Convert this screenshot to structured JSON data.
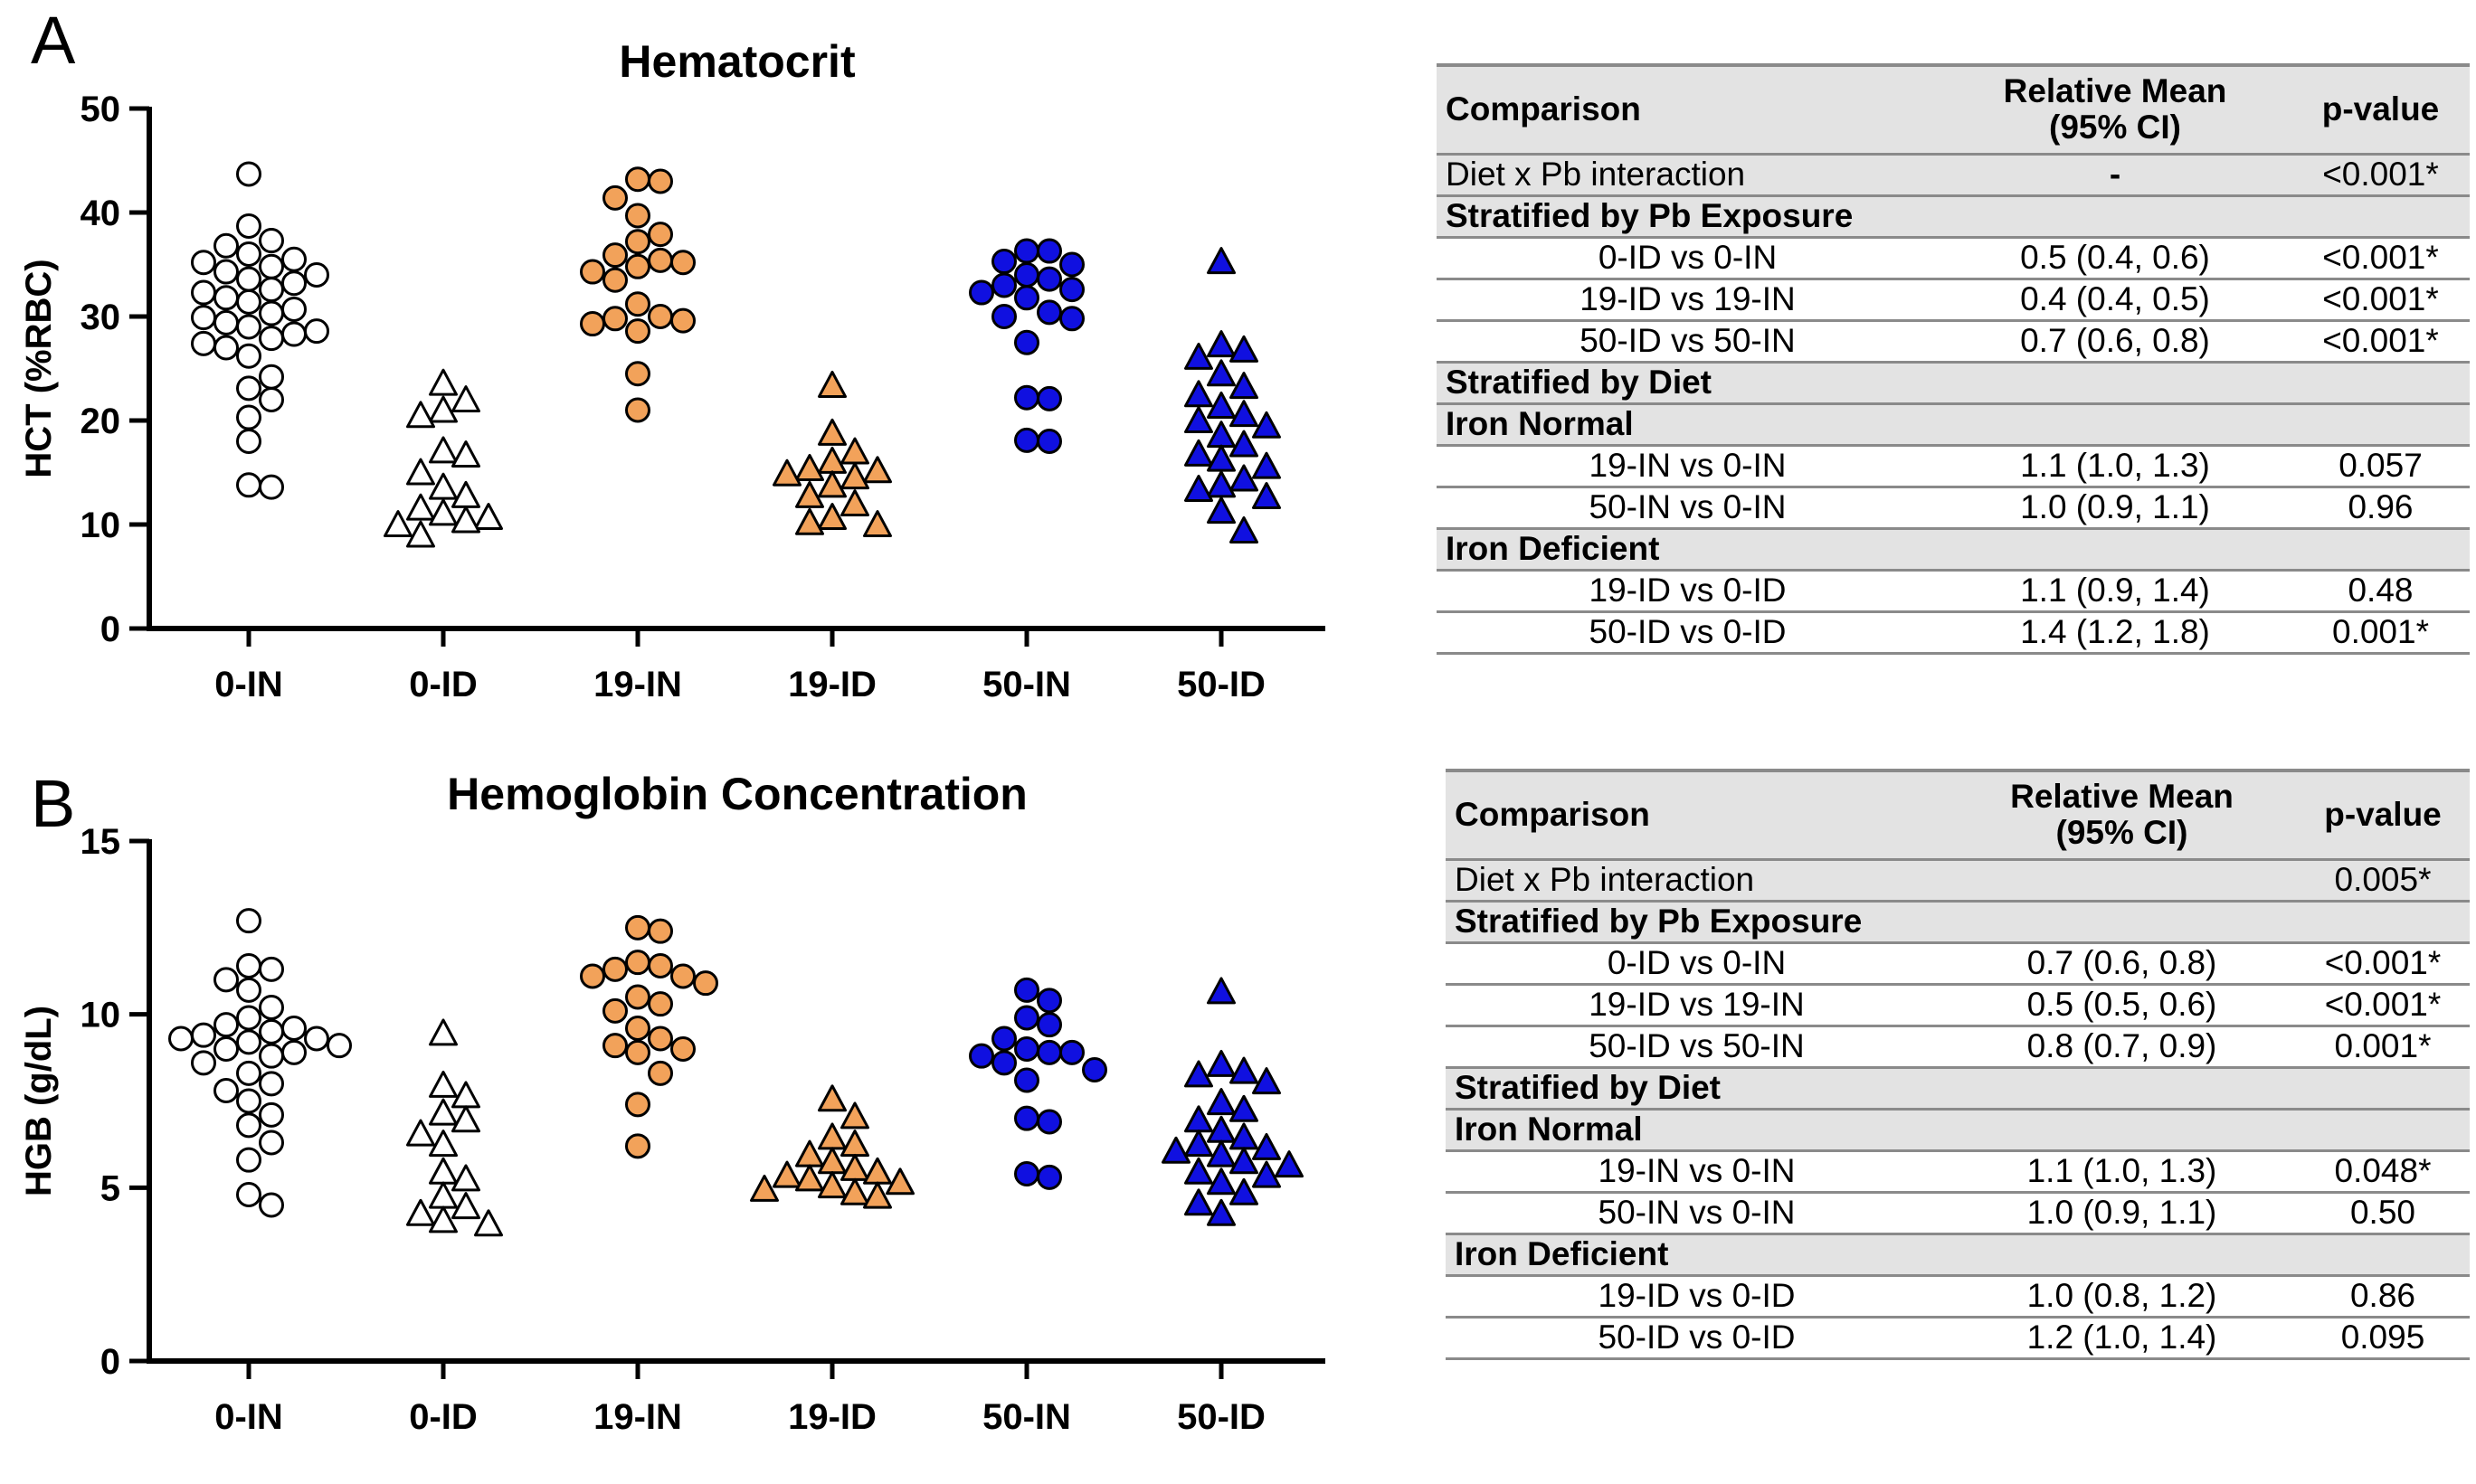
{
  "panels": {
    "a_letter": "A",
    "b_letter": "B"
  },
  "colors": {
    "orange": "#f2a25a",
    "blue": "#1010e0",
    "white": "#ffffff",
    "header_grey": "#e3e3e3",
    "rule_grey": "#8a8a8a"
  },
  "chart_data": [
    {
      "type": "scatter",
      "title": "Hematocrit",
      "ylabel": "HCT (%RBC)",
      "xlabel": "",
      "ylim": [
        0,
        50
      ],
      "yticks": [
        0,
        10,
        20,
        30,
        40,
        50
      ],
      "categories": [
        "0-IN",
        "0-ID",
        "19-IN",
        "19-ID",
        "50-IN",
        "50-ID"
      ],
      "series": [
        {
          "name": "0-IN",
          "marker": "circle",
          "fill": "#ffffff",
          "values": [
            43.7,
            38.7,
            37.3,
            36.8,
            36.0,
            35.5,
            35.2,
            34.8,
            34.3,
            34.0,
            33.6,
            33.2,
            32.6,
            32.3,
            31.8,
            31.4,
            30.7,
            30.3,
            29.9,
            29.4,
            29.0,
            28.6,
            28.3,
            27.9,
            27.4,
            27.0,
            26.2,
            24.2,
            23.1,
            22.0,
            20.3,
            18.0,
            13.8,
            13.6
          ]
        },
        {
          "name": "0-ID",
          "marker": "triangle",
          "fill": "#ffffff",
          "values": [
            23.4,
            21.8,
            20.8,
            20.3,
            16.9,
            16.5,
            14.8,
            13.4,
            12.6,
            11.4,
            10.9,
            10.5,
            10.2,
            9.8,
            8.8
          ]
        },
        {
          "name": "19-IN",
          "marker": "circle",
          "fill": "#f2a25a",
          "values": [
            43.2,
            43.0,
            41.4,
            39.7,
            37.9,
            37.2,
            35.9,
            35.4,
            35.2,
            34.8,
            34.3,
            33.5,
            31.2,
            30.0,
            29.8,
            29.6,
            29.3,
            28.6,
            24.5,
            21.0
          ]
        },
        {
          "name": "19-ID",
          "marker": "triangle",
          "fill": "#f2a25a",
          "values": [
            23.2,
            18.6,
            16.8,
            15.9,
            15.2,
            15.0,
            14.7,
            14.4,
            13.6,
            12.6,
            11.8,
            10.5,
            10.0,
            9.8
          ]
        },
        {
          "name": "50-IN",
          "marker": "circle",
          "fill": "#1010e0",
          "values": [
            36.3,
            36.3,
            35.3,
            35.0,
            34.0,
            33.6,
            33.0,
            32.6,
            32.3,
            31.8,
            30.4,
            30.0,
            29.8,
            27.5,
            22.2,
            22.1,
            18.1,
            18.0
          ]
        },
        {
          "name": "50-ID",
          "marker": "triangle",
          "fill": "#1010e0",
          "values": [
            35.1,
            27.1,
            26.6,
            25.9,
            24.3,
            23.1,
            22.3,
            21.2,
            20.4,
            19.8,
            19.3,
            18.4,
            17.5,
            16.6,
            16.1,
            15.4,
            14.2,
            13.6,
            13.2,
            12.5,
            11.1,
            9.2
          ]
        }
      ]
    },
    {
      "type": "scatter",
      "title": "Hemoglobin Concentration",
      "ylabel": "HGB (g/dL)",
      "xlabel": "",
      "ylim": [
        0,
        15
      ],
      "yticks": [
        0,
        5,
        10,
        15
      ],
      "categories": [
        "0-IN",
        "0-ID",
        "19-IN",
        "19-ID",
        "50-IN",
        "50-ID"
      ],
      "series": [
        {
          "name": "0-IN",
          "marker": "circle",
          "fill": "#ffffff",
          "values": [
            12.7,
            11.4,
            11.3,
            11.0,
            10.7,
            10.2,
            9.9,
            9.7,
            9.6,
            9.5,
            9.4,
            9.3,
            9.3,
            9.2,
            9.1,
            9.0,
            8.9,
            8.8,
            8.6,
            8.3,
            8.0,
            7.8,
            7.5,
            7.1,
            6.8,
            6.3,
            5.8,
            4.8,
            4.5
          ]
        },
        {
          "name": "0-ID",
          "marker": "triangle",
          "fill": "#ffffff",
          "values": [
            9.4,
            7.9,
            7.6,
            7.1,
            6.9,
            6.5,
            6.2,
            5.4,
            5.2,
            4.7,
            4.4,
            4.2,
            4.0,
            3.9
          ]
        },
        {
          "name": "19-IN",
          "marker": "circle",
          "fill": "#f2a25a",
          "values": [
            12.5,
            12.4,
            11.5,
            11.4,
            11.3,
            11.1,
            11.1,
            10.9,
            10.5,
            10.3,
            10.1,
            9.6,
            9.3,
            9.1,
            9.0,
            8.9,
            8.3,
            7.4,
            6.2
          ]
        },
        {
          "name": "19-ID",
          "marker": "triangle",
          "fill": "#f2a25a",
          "values": [
            7.5,
            7.0,
            6.4,
            6.2,
            5.9,
            5.7,
            5.5,
            5.4,
            5.3,
            5.2,
            5.1,
            5.0,
            4.9,
            4.8,
            4.7
          ]
        },
        {
          "name": "50-IN",
          "marker": "circle",
          "fill": "#1010e0",
          "values": [
            10.7,
            10.4,
            9.9,
            9.7,
            9.3,
            9.0,
            8.9,
            8.9,
            8.8,
            8.6,
            8.4,
            8.1,
            7.0,
            6.9,
            5.4,
            5.3
          ]
        },
        {
          "name": "50-ID",
          "marker": "triangle",
          "fill": "#1010e0",
          "values": [
            10.6,
            8.5,
            8.3,
            8.2,
            8.0,
            7.4,
            7.2,
            6.9,
            6.6,
            6.4,
            6.2,
            6.1,
            6.0,
            5.9,
            5.7,
            5.6,
            5.4,
            5.3,
            5.1,
            4.8,
            4.5,
            4.2
          ]
        }
      ]
    }
  ],
  "tables": [
    {
      "header": {
        "comparison": "Comparison",
        "mean_line1": "Relative Mean",
        "mean_line2": "(95% CI)",
        "pvalue": "p-value"
      },
      "interaction": {
        "label": "Diet x Pb interaction",
        "mean": "-",
        "pvalue": "<0.001*"
      },
      "section_pb": "Stratified by Pb Exposure",
      "pb_rows": [
        {
          "label": "0-ID vs 0-IN",
          "mean": "0.5 (0.4, 0.6)",
          "pvalue": "<0.001*"
        },
        {
          "label": "19-ID vs 19-IN",
          "mean": "0.4 (0.4, 0.5)",
          "pvalue": "<0.001*"
        },
        {
          "label": "50-ID vs 50-IN",
          "mean": "0.7 (0.6, 0.8)",
          "pvalue": "<0.001*"
        }
      ],
      "section_diet": "Stratified by Diet",
      "section_normal": "Iron Normal",
      "normal_rows": [
        {
          "label": "19-IN vs 0-IN",
          "mean": "1.1 (1.0, 1.3)",
          "pvalue": "0.057"
        },
        {
          "label": "50-IN vs 0-IN",
          "mean": "1.0 (0.9, 1.1)",
          "pvalue": "0.96"
        }
      ],
      "section_deficient": "Iron Deficient",
      "deficient_rows": [
        {
          "label": "19-ID vs 0-ID",
          "mean": "1.1 (0.9, 1.4)",
          "pvalue": "0.48"
        },
        {
          "label": "50-ID vs 0-ID",
          "mean": "1.4 (1.2, 1.8)",
          "pvalue": "0.001*"
        }
      ]
    },
    {
      "header": {
        "comparison": "Comparison",
        "mean_line1": "Relative Mean",
        "mean_line2": "(95% CI)",
        "pvalue": "p-value"
      },
      "interaction": {
        "label": "Diet x Pb interaction",
        "mean": "",
        "pvalue": "0.005*"
      },
      "section_pb": "Stratified by Pb Exposure",
      "pb_rows": [
        {
          "label": "0-ID vs 0-IN",
          "mean": "0.7 (0.6, 0.8)",
          "pvalue": "<0.001*"
        },
        {
          "label": "19-ID vs 19-IN",
          "mean": "0.5 (0.5, 0.6)",
          "pvalue": "<0.001*"
        },
        {
          "label": "50-ID vs 50-IN",
          "mean": "0.8 (0.7, 0.9)",
          "pvalue": "0.001*"
        }
      ],
      "section_diet": "Stratified by Diet",
      "section_normal": "Iron Normal",
      "normal_rows": [
        {
          "label": "19-IN vs 0-IN",
          "mean": "1.1 (1.0, 1.3)",
          "pvalue": "0.048*"
        },
        {
          "label": "50-IN vs 0-IN",
          "mean": "1.0 (0.9, 1.1)",
          "pvalue": "0.50"
        }
      ],
      "section_deficient": "Iron Deficient",
      "deficient_rows": [
        {
          "label": "19-ID vs 0-ID",
          "mean": "1.0 (0.8, 1.2)",
          "pvalue": "0.86"
        },
        {
          "label": "50-ID vs 0-ID",
          "mean": "1.2 (1.0, 1.4)",
          "pvalue": "0.095"
        }
      ]
    }
  ]
}
